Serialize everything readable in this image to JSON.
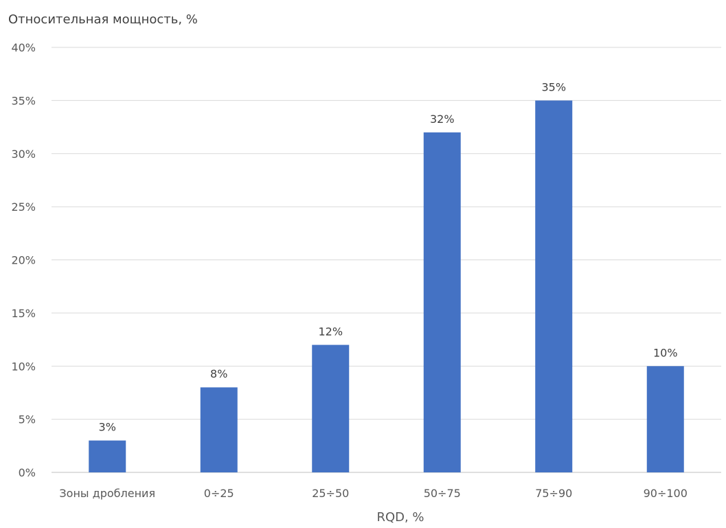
{
  "chart_data": {
    "type": "bar",
    "title": "",
    "ylabel": "Относительная мощность, %",
    "xlabel": "RQD, %",
    "categories": [
      "Зоны дробления",
      "0÷25",
      "25÷50",
      "50÷75",
      "75÷90",
      "90÷100"
    ],
    "series": [
      {
        "values": [
          3,
          8,
          12,
          32,
          35,
          10
        ],
        "labels": [
          "3%",
          "8%",
          "12%",
          "32%",
          "35%",
          "10%"
        ]
      }
    ],
    "ylim": [
      0,
      40
    ],
    "yticks": [
      0,
      5,
      10,
      15,
      20,
      25,
      30,
      35,
      40
    ],
    "ytick_labels": [
      "0%",
      "5%",
      "10%",
      "15%",
      "20%",
      "25%",
      "30%",
      "35%",
      "40%"
    ],
    "grid": "horizontal",
    "bar_color": "#4472C4"
  }
}
